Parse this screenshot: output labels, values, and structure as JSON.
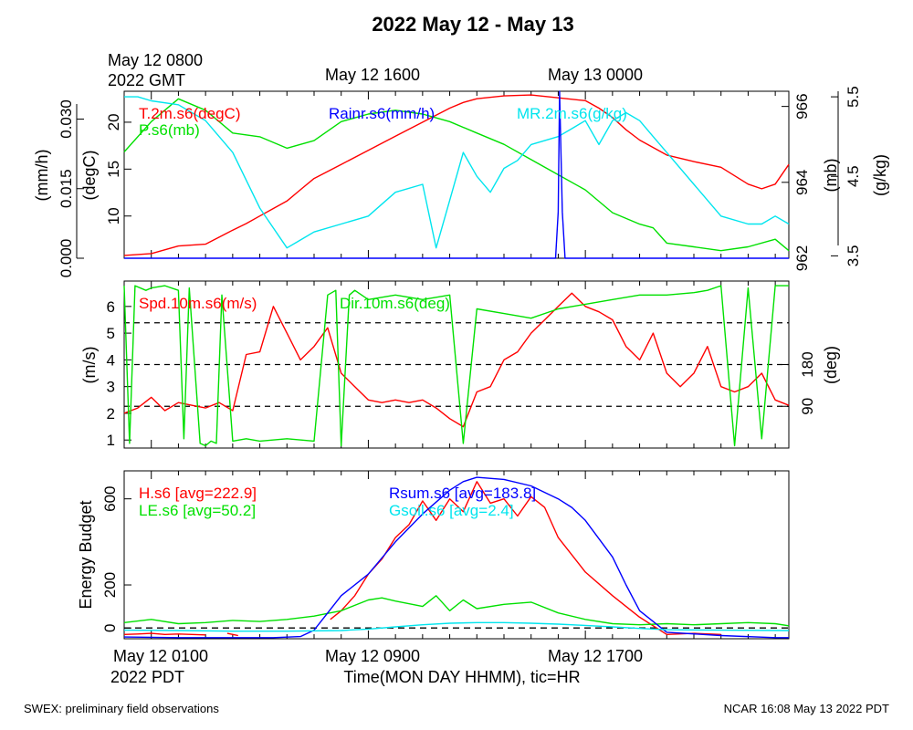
{
  "title": "2022 May 12 - May 13",
  "footer": {
    "left": "SWEX: preliminary field observations",
    "right": "NCAR 16:08 May 13 2022 PDT"
  },
  "top_axis": {
    "ticks": [
      {
        "hour": 1,
        "label": "May 12 0800"
      },
      {
        "hour": 9,
        "label": "May 12 1600"
      },
      {
        "hour": 17,
        "label": "May 13 0000"
      }
    ],
    "zone_label": "2022 GMT"
  },
  "bottom_axis": {
    "ticks": [
      {
        "hour": 1,
        "label": "May 12 0100"
      },
      {
        "hour": 9,
        "label": "May 12 0900"
      },
      {
        "hour": 17,
        "label": "May 12 1700"
      }
    ],
    "zone_label": "2022 PDT",
    "xlabel": "Time(MON DAY HHMM), tic=HR"
  },
  "chart_data": [
    {
      "type": "line",
      "x_units": "hours since May 12 0000 PDT",
      "xlim": [
        0.0,
        24.5
      ],
      "axes": {
        "temp": {
          "label": "(degC)",
          "ylim": [
            5.5,
            23.3
          ],
          "ticks": [
            10,
            15,
            20
          ],
          "side": "left"
        },
        "rain": {
          "label": "(mm/h)",
          "ylim": [
            0.0,
            0.036
          ],
          "ticks": [
            0.0,
            0.015,
            0.03
          ],
          "tick_labels": [
            "0.000",
            "0.015",
            "0.030"
          ],
          "side": "left"
        },
        "pres": {
          "label": "(mb)",
          "ylim": [
            962.0,
            966.4
          ],
          "ticks": [
            962,
            964,
            966
          ],
          "side": "right"
        },
        "mr": {
          "label": "(g/kg)",
          "ylim": [
            3.47,
            5.57
          ],
          "ticks": [
            3.5,
            4.5,
            5.5
          ],
          "side": "right"
        }
      },
      "series": [
        {
          "name": "T.2m.s6(degC)",
          "axis": "temp",
          "color": "#ff0000",
          "x": [
            0.0,
            1.0,
            2.0,
            3.0,
            4.0,
            4.5,
            5.0,
            5.5,
            6.0,
            6.5,
            7.0,
            8.0,
            9.0,
            10.0,
            11.0,
            12.0,
            12.5,
            13.0,
            14.0,
            15.0,
            16.0,
            17.0,
            17.5,
            18.0,
            18.5,
            19.0,
            20.0,
            21.0,
            22.0,
            23.0,
            23.5,
            24.0,
            24.5
          ],
          "values": [
            5.8,
            6.0,
            6.8,
            7.0,
            8.5,
            9.2,
            10.0,
            10.8,
            11.6,
            12.8,
            14.0,
            15.5,
            17.0,
            18.5,
            20.0,
            21.5,
            22.1,
            22.5,
            22.8,
            22.9,
            22.6,
            22.3,
            21.5,
            20.5,
            19.2,
            18.1,
            16.5,
            15.8,
            15.2,
            13.4,
            12.9,
            13.4,
            15.5
          ]
        },
        {
          "name": "P.s6(mb)",
          "axis": "pres",
          "color": "#00e000",
          "x": [
            0.0,
            1.0,
            2.0,
            3.0,
            4.0,
            5.0,
            6.0,
            7.0,
            8.0,
            9.0,
            10.0,
            11.0,
            12.0,
            13.0,
            14.0,
            15.0,
            16.0,
            17.0,
            18.0,
            19.0,
            19.5,
            20.0,
            21.0,
            22.0,
            23.0,
            24.0,
            24.5
          ],
          "values": [
            964.8,
            965.6,
            966.2,
            965.9,
            965.3,
            965.2,
            964.9,
            965.1,
            965.6,
            965.8,
            965.9,
            965.8,
            965.6,
            965.3,
            965.0,
            964.6,
            964.2,
            963.8,
            963.2,
            962.9,
            962.8,
            962.4,
            962.3,
            962.2,
            962.3,
            962.5,
            962.2
          ]
        },
        {
          "name": "MR.2m.s6(g/kg)",
          "axis": "mr",
          "color": "#00e5ee",
          "x": [
            0.0,
            0.5,
            1.0,
            2.0,
            3.0,
            4.0,
            5.0,
            6.0,
            6.5,
            7.0,
            8.0,
            9.0,
            10.0,
            11.0,
            11.5,
            12.0,
            12.5,
            13.0,
            13.5,
            14.0,
            14.5,
            15.0,
            16.0,
            16.5,
            17.0,
            17.5,
            18.0,
            18.5,
            19.0,
            19.5,
            20.0,
            21.0,
            22.0,
            23.0,
            23.5,
            24.0,
            24.5
          ],
          "values": [
            5.5,
            5.5,
            5.45,
            5.4,
            5.2,
            4.8,
            4.1,
            3.6,
            3.7,
            3.8,
            3.9,
            4.0,
            4.3,
            4.4,
            3.6,
            4.2,
            4.8,
            4.5,
            4.3,
            4.6,
            4.7,
            4.9,
            5.0,
            5.1,
            5.2,
            4.9,
            5.2,
            5.3,
            5.2,
            5.0,
            4.8,
            4.4,
            4.0,
            3.9,
            3.9,
            4.0,
            3.9
          ]
        },
        {
          "name": "Rainr.s6(mm/h)",
          "axis": "rain",
          "color": "#0000ff",
          "x": [
            0.0,
            15.9,
            16.0,
            16.05,
            16.15,
            16.25,
            24.5
          ],
          "values": [
            0.0,
            0.0,
            0.01,
            0.036,
            0.01,
            0.0,
            0.0
          ]
        }
      ]
    },
    {
      "type": "line",
      "x_units": "hours since May 12 0000 PDT",
      "xlim": [
        0.0,
        24.5
      ],
      "axes": {
        "spd": {
          "label": "(m/s)",
          "ylim": [
            0.7,
            6.95
          ],
          "ticks": [
            1,
            2,
            3,
            4,
            5,
            6
          ],
          "side": "left"
        },
        "dir": {
          "label": "(deg)",
          "ylim": [
            0,
            360
          ],
          "ticks": [
            90,
            180
          ],
          "side": "right"
        }
      },
      "reference_lines": [
        {
          "axis": "dir",
          "value": 90
        },
        {
          "axis": "dir",
          "value": 180
        },
        {
          "axis": "dir",
          "value": 270
        }
      ],
      "series": [
        {
          "name": "Spd.10m.s6(m/s)",
          "axis": "spd",
          "color": "#ff0000",
          "x": [
            0.0,
            0.5,
            1.0,
            1.5,
            2.0,
            2.5,
            3.0,
            3.5,
            4.0,
            4.5,
            5.0,
            5.5,
            6.0,
            6.5,
            7.0,
            7.5,
            8.0,
            8.5,
            9.0,
            9.5,
            10.0,
            10.5,
            11.0,
            11.5,
            12.0,
            12.5,
            13.0,
            13.5,
            14.0,
            14.5,
            15.0,
            15.5,
            16.0,
            16.5,
            17.0,
            17.5,
            18.0,
            18.5,
            19.0,
            19.5,
            20.0,
            20.5,
            21.0,
            21.5,
            22.0,
            22.5,
            23.0,
            23.5,
            24.0,
            24.5
          ],
          "values": [
            2.0,
            2.2,
            2.6,
            2.1,
            2.4,
            2.3,
            2.2,
            2.4,
            2.1,
            4.2,
            4.3,
            6.0,
            5.0,
            4.0,
            4.5,
            5.2,
            3.5,
            3.0,
            2.5,
            2.4,
            2.5,
            2.4,
            2.5,
            2.2,
            1.8,
            1.5,
            2.8,
            3.0,
            4.0,
            4.3,
            5.0,
            5.5,
            6.0,
            6.5,
            6.0,
            5.8,
            5.5,
            4.5,
            4.0,
            5.0,
            3.5,
            3.0,
            3.5,
            4.5,
            3.0,
            2.8,
            3.0,
            3.5,
            2.5,
            2.3
          ]
        },
        {
          "name": "Dir.10m.s6(deg)",
          "axis": "dir",
          "color": "#00e000",
          "x": [
            0.0,
            0.2,
            0.4,
            0.8,
            1.0,
            1.5,
            2.0,
            2.2,
            2.4,
            2.8,
            3.0,
            3.2,
            3.4,
            3.6,
            4.0,
            4.5,
            5.0,
            6.0,
            7.0,
            7.5,
            7.8,
            8.0,
            8.3,
            8.5,
            9.0,
            10.0,
            11.0,
            12.0,
            12.5,
            13.0,
            14.0,
            15.0,
            16.0,
            17.0,
            18.0,
            19.0,
            20.0,
            21.0,
            21.5,
            22.0,
            22.5,
            23.0,
            23.5,
            24.0,
            24.5
          ],
          "values": [
            350,
            10,
            350,
            340,
            345,
            350,
            340,
            20,
            345,
            10,
            5,
            15,
            10,
            330,
            15,
            20,
            15,
            20,
            15,
            330,
            340,
            5,
            330,
            340,
            320,
            330,
            320,
            330,
            10,
            300,
            290,
            280,
            300,
            310,
            320,
            330,
            330,
            335,
            340,
            350,
            5,
            345,
            20,
            350,
            350
          ]
        }
      ]
    },
    {
      "type": "line",
      "x_units": "hours since May 12 0000 PDT",
      "xlim": [
        0.0,
        24.5
      ],
      "ylabel": "Energy Budget",
      "ylim": [
        -50,
        730
      ],
      "yticks": [
        0,
        200,
        600
      ],
      "reference_lines": [
        {
          "value": 0
        }
      ],
      "series": [
        {
          "name": "H.s6 [avg=222.9]",
          "color": "#ff0000",
          "segments": [
            {
              "x": [
                0.0,
                0.5,
                1.0,
                1.5,
                2.0,
                2.5,
                3.0
              ],
              "values": [
                -30,
                -28,
                -25,
                -30,
                -28,
                -30,
                -32
              ]
            },
            {
              "x": [
                3.8,
                4.0,
                4.2
              ],
              "values": [
                -25,
                -30,
                -35
              ]
            },
            {
              "x": [
                7.6,
                8.0,
                8.5,
                9.0,
                9.5,
                10.0,
                10.5,
                11.0,
                11.5,
                12.0,
                12.5,
                13.0,
                13.5,
                14.0,
                14.5,
                15.0,
                15.5,
                16.0,
                17.0,
                18.0,
                19.0,
                20.0,
                21.0,
                22.0
              ],
              "values": [
                40,
                80,
                150,
                250,
                320,
                420,
                480,
                590,
                500,
                600,
                540,
                680,
                580,
                600,
                520,
                610,
                560,
                420,
                260,
                150,
                50,
                -30,
                -25,
                -30
              ]
            }
          ]
        },
        {
          "name": "LE.s6 [avg=50.2]",
          "color": "#00e000",
          "x": [
            0.0,
            1.0,
            2.0,
            3.0,
            4.0,
            5.0,
            6.0,
            7.0,
            8.0,
            9.0,
            9.5,
            10.0,
            11.0,
            11.5,
            12.0,
            12.5,
            13.0,
            14.0,
            15.0,
            16.0,
            17.0,
            18.0,
            19.0,
            20.0,
            21.0,
            22.0,
            23.0,
            24.0,
            24.5
          ],
          "values": [
            25,
            40,
            20,
            25,
            35,
            30,
            40,
            55,
            80,
            130,
            140,
            125,
            100,
            150,
            80,
            130,
            90,
            110,
            120,
            70,
            40,
            20,
            15,
            20,
            15,
            20,
            25,
            20,
            10
          ]
        },
        {
          "name": "Rsum.s6 [avg=183.8]",
          "color": "#0000ff",
          "x": [
            0.0,
            2.0,
            4.0,
            5.5,
            6.5,
            7.0,
            7.5,
            8.0,
            9.0,
            10.0,
            11.0,
            12.0,
            12.5,
            13.0,
            14.0,
            15.0,
            16.0,
            16.5,
            17.0,
            18.0,
            18.5,
            19.0,
            20.0,
            22.0,
            24.0,
            24.5
          ],
          "values": [
            -42,
            -45,
            -45,
            -45,
            -40,
            -10,
            70,
            150,
            250,
            400,
            530,
            640,
            680,
            700,
            690,
            660,
            600,
            560,
            500,
            330,
            200,
            80,
            -20,
            -35,
            -45,
            -45
          ]
        },
        {
          "name": "Gsoil.s6 [avg=2.4]",
          "color": "#00e5ee",
          "x": [
            0.0,
            2.0,
            4.0,
            6.0,
            8.0,
            9.0,
            10.0,
            11.0,
            12.0,
            13.0,
            14.0,
            15.0,
            16.0,
            17.0,
            18.0,
            19.0,
            20.0,
            22.0,
            24.5
          ],
          "values": [
            -10,
            -12,
            -15,
            -15,
            -12,
            -5,
            5,
            15,
            22,
            25,
            25,
            22,
            18,
            12,
            5,
            -2,
            -8,
            -10,
            -12
          ]
        }
      ]
    }
  ]
}
